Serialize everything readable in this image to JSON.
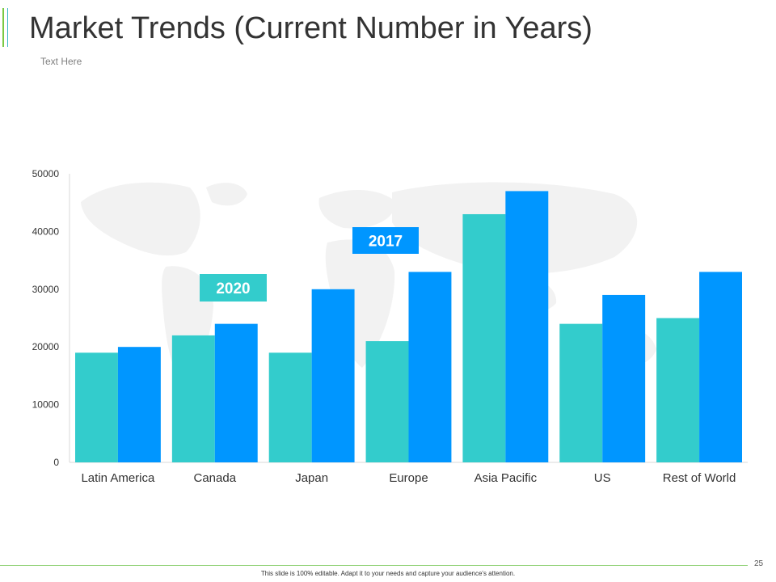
{
  "slide": {
    "title": "Market Trends (Current Number in Years)",
    "subtitle": "Text Here",
    "footer_note": "This slide is 100% editable. Adapt it to your needs and capture your audience's attention.",
    "page_number": "25"
  },
  "colors": {
    "series_2020": "#33cccc",
    "series_2017": "#0096ff",
    "axis": "#d9d9d9",
    "tick_text": "#333333",
    "map": "#f2f2f2"
  },
  "chart_data": {
    "type": "bar",
    "title": "",
    "xlabel": "",
    "ylabel": "",
    "categories": [
      "Latin America",
      "Canada",
      "Japan",
      "Europe",
      "Asia Pacific",
      "US",
      "Rest  of World"
    ],
    "series": [
      {
        "name": "2020",
        "values": [
          19000,
          22000,
          19000,
          21000,
          43000,
          24000,
          25000
        ]
      },
      {
        "name": "2017",
        "values": [
          20000,
          24000,
          30000,
          33000,
          47000,
          29000,
          33000
        ]
      }
    ],
    "ylim": [
      0,
      50000
    ],
    "yticks": [
      0,
      10000,
      20000,
      30000,
      40000,
      50000
    ],
    "grid": false,
    "legend": "inline-callouts"
  }
}
